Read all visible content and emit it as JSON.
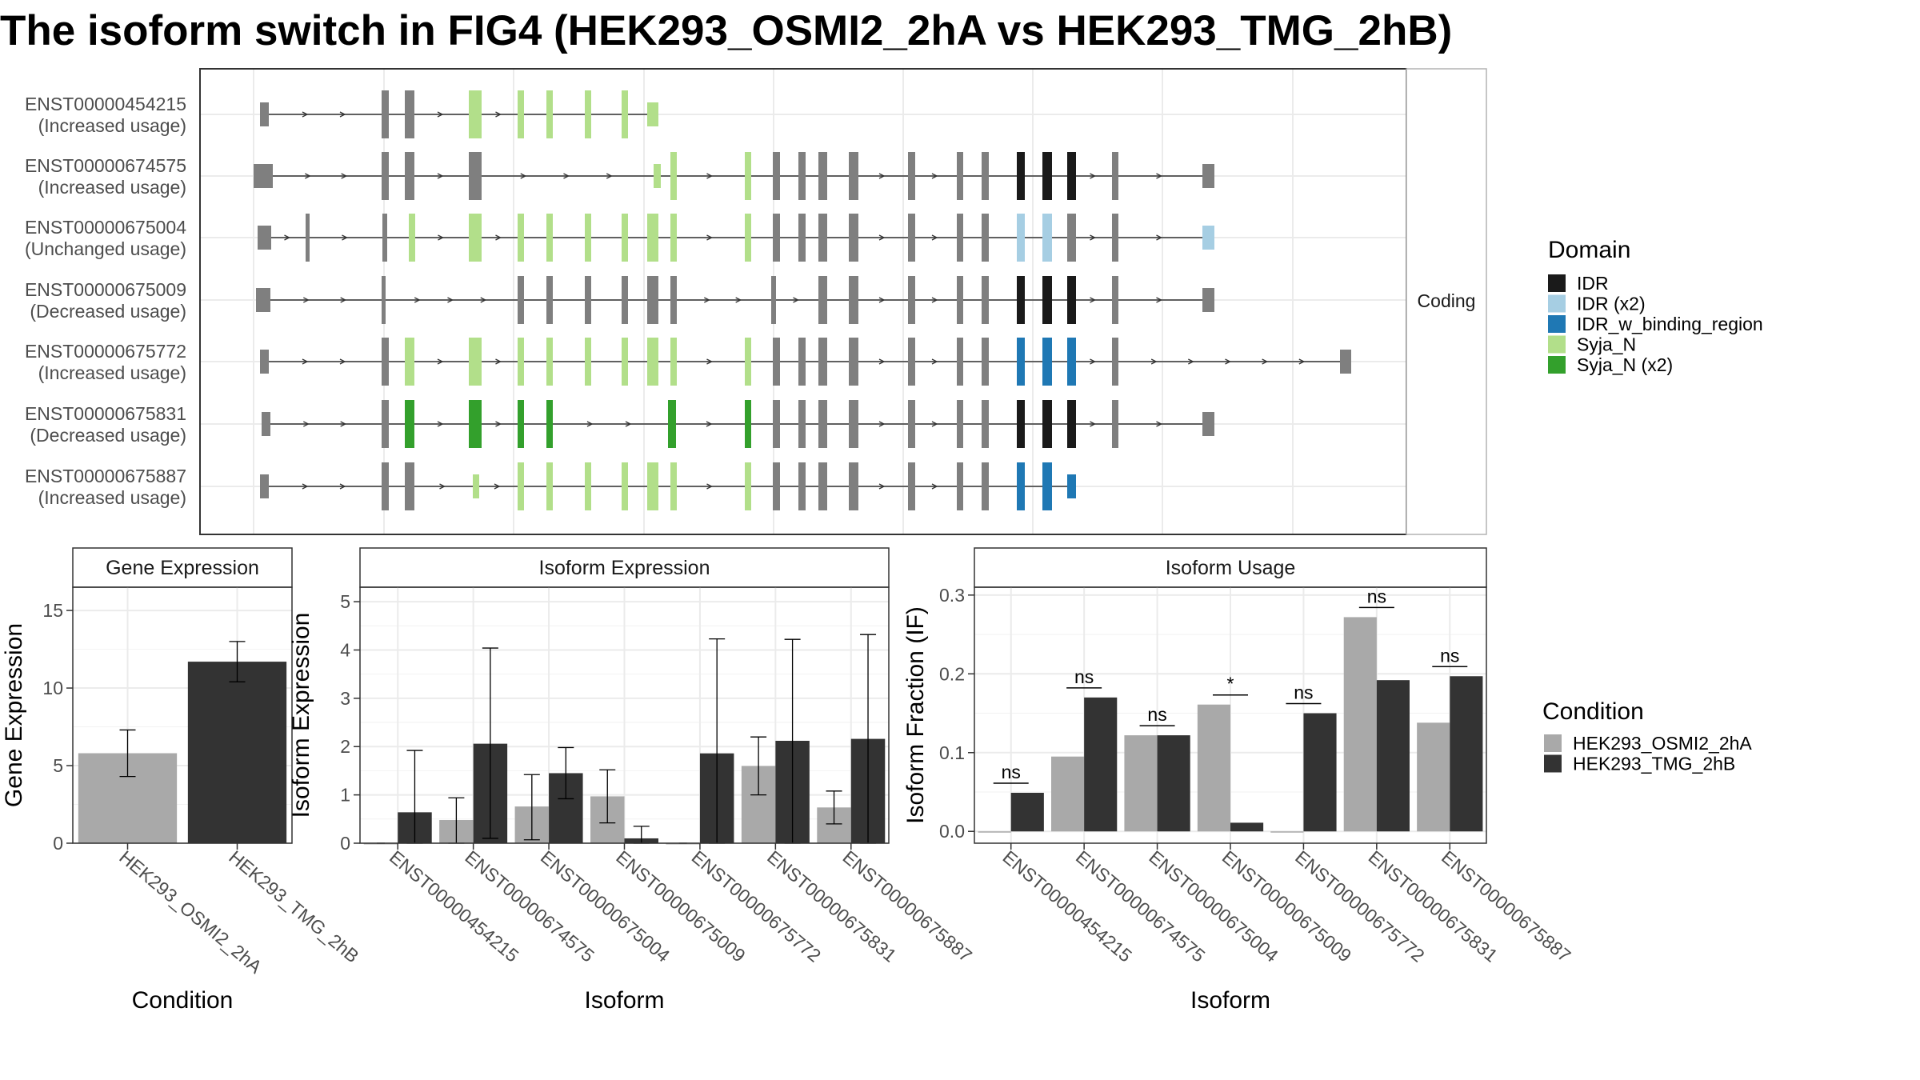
{
  "title": "The isoform switch in FIG4 (HEK293_OSMI2_2hA vs HEK293_TMG_2hB)",
  "colors": {
    "grey_exon": "#7f7f7f",
    "IDR": "#1a1a1a",
    "IDR_x2": "#a6cee3",
    "IDR_w_binding_region": "#1f78b4",
    "Syja_N": "#b2df8a",
    "Syja_N_x2": "#33a02c",
    "cond_a": "#a9a9a9",
    "cond_b": "#333333"
  },
  "isoform_structure": {
    "strip_label": "Coding",
    "isoforms": [
      {
        "id": "ENST00000454215",
        "usage": "(Increased usage)"
      },
      {
        "id": "ENST00000674575",
        "usage": "(Increased usage)"
      },
      {
        "id": "ENST00000675004",
        "usage": "(Unchanged usage)"
      },
      {
        "id": "ENST00000675009",
        "usage": "(Decreased usage)"
      },
      {
        "id": "ENST00000675772",
        "usage": "(Increased usage)"
      },
      {
        "id": "ENST00000675831",
        "usage": "(Decreased usage)"
      },
      {
        "id": "ENST00000675887",
        "usage": "(Increased usage)"
      }
    ]
  },
  "domain_legend": {
    "title": "Domain",
    "items": [
      {
        "label": "IDR",
        "color": "#1a1a1a"
      },
      {
        "label": "IDR (x2)",
        "color": "#a6cee3"
      },
      {
        "label": "IDR_w_binding_region",
        "color": "#1f78b4"
      },
      {
        "label": "Syja_N",
        "color": "#b2df8a"
      },
      {
        "label": "Syja_N (x2)",
        "color": "#33a02c"
      }
    ]
  },
  "condition_legend": {
    "title": "Condition",
    "items": [
      {
        "label": "HEK293_OSMI2_2hA",
        "color": "#a9a9a9"
      },
      {
        "label": "HEK293_TMG_2hB",
        "color": "#333333"
      }
    ]
  },
  "chart_data": [
    {
      "type": "bar",
      "title": "Gene Expression",
      "xlabel": "Condition",
      "ylabel": "Gene Expression",
      "ylim": [
        0,
        16.5
      ],
      "yticks": [
        0,
        5,
        10,
        15
      ],
      "categories": [
        "HEK293_OSMI2_2hA",
        "HEK293_TMG_2hB"
      ],
      "values": [
        5.8,
        11.7
      ],
      "err_low": [
        4.3,
        10.4
      ],
      "err_high": [
        7.3,
        13.0
      ]
    },
    {
      "type": "bar",
      "title": "Isoform Expression",
      "xlabel": "Isoform",
      "ylabel": "Isoform Expression",
      "ylim": [
        0,
        5.3
      ],
      "yticks": [
        0,
        1,
        2,
        3,
        4,
        5
      ],
      "categories": [
        "ENST00000454215",
        "ENST00000674575",
        "ENST00000675004",
        "ENST00000675009",
        "ENST00000675772",
        "ENST00000675831",
        "ENST00000675887"
      ],
      "series": [
        {
          "name": "HEK293_OSMI2_2hA",
          "values": [
            0.0,
            0.48,
            0.76,
            0.97,
            0.0,
            1.6,
            0.74
          ],
          "err_low": [
            0.0,
            0.0,
            0.07,
            0.42,
            0.0,
            1.0,
            0.4
          ],
          "err_high": [
            0.0,
            0.94,
            1.42,
            1.52,
            0.0,
            2.2,
            1.08
          ]
        },
        {
          "name": "HEK293_TMG_2hB",
          "values": [
            0.64,
            2.06,
            1.45,
            0.1,
            1.86,
            2.12,
            2.16
          ],
          "err_low": [
            0.0,
            0.1,
            0.92,
            0.0,
            0.0,
            0.0,
            0.0
          ],
          "err_high": [
            1.92,
            4.04,
            1.98,
            0.35,
            4.23,
            4.22,
            4.32
          ]
        }
      ]
    },
    {
      "type": "bar",
      "title": "Isoform Usage",
      "xlabel": "Isoform",
      "ylabel": "Isoform Fraction (IF)",
      "ylim": [
        -0.015,
        0.31
      ],
      "yticks": [
        0.0,
        0.1,
        0.2,
        0.3
      ],
      "tick_labels": [
        "0.0",
        "0.1",
        "0.2",
        "0.3"
      ],
      "categories": [
        "ENST00000454215",
        "ENST00000674575",
        "ENST00000675004",
        "ENST00000675009",
        "ENST00000675772",
        "ENST00000675831",
        "ENST00000675887"
      ],
      "series": [
        {
          "name": "HEK293_OSMI2_2hA",
          "values": [
            0.0,
            0.095,
            0.122,
            0.161,
            0.0,
            0.272,
            0.138
          ]
        },
        {
          "name": "HEK293_TMG_2hB",
          "values": [
            0.049,
            0.17,
            0.122,
            0.011,
            0.15,
            0.192,
            0.197
          ]
        }
      ],
      "significance": [
        "ns",
        "ns",
        "ns",
        "*",
        "ns",
        "ns",
        "ns"
      ]
    }
  ]
}
